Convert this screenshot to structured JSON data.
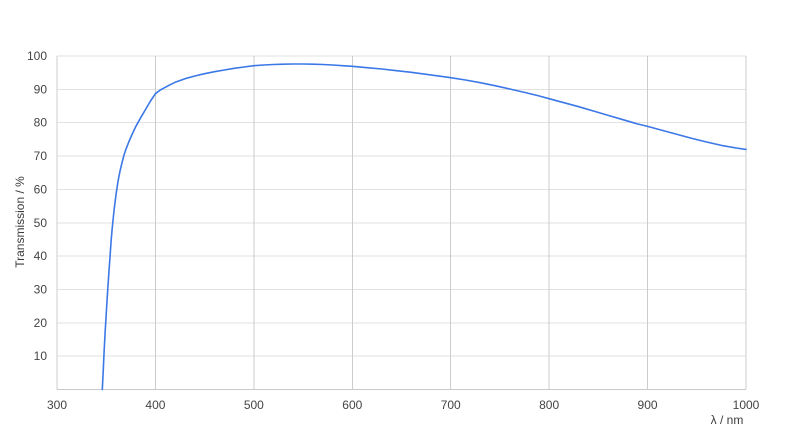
{
  "chart_data": {
    "type": "line",
    "title": "",
    "xlabel": "λ / nm",
    "ylabel": "Transmission / %",
    "xlim": [
      300,
      1000
    ],
    "ylim": [
      0,
      100
    ],
    "x_ticks": [
      300,
      400,
      500,
      600,
      700,
      800,
      900,
      1000
    ],
    "y_ticks": [
      10,
      20,
      30,
      40,
      50,
      60,
      70,
      80,
      90,
      100
    ],
    "grid": true,
    "legend_position": "none",
    "series": [
      {
        "color": "#3b78e7",
        "points": [
          [
            346,
            0
          ],
          [
            347,
            6
          ],
          [
            348,
            12
          ],
          [
            349,
            17.5
          ],
          [
            350,
            22.5
          ],
          [
            351,
            27.5
          ],
          [
            352,
            32
          ],
          [
            353,
            36.5
          ],
          [
            354,
            40.5
          ],
          [
            355,
            44.5
          ],
          [
            356,
            48
          ],
          [
            357,
            51
          ],
          [
            358,
            53.8
          ],
          [
            359,
            56.3
          ],
          [
            360,
            58.6
          ],
          [
            362,
            62.4
          ],
          [
            364,
            65.5
          ],
          [
            366,
            68
          ],
          [
            368,
            70.2
          ],
          [
            370,
            72
          ],
          [
            373,
            74.3
          ],
          [
            376,
            76.3
          ],
          [
            380,
            78.8
          ],
          [
            385,
            81.5
          ],
          [
            390,
            84
          ],
          [
            395,
            86.5
          ],
          [
            400,
            88.7
          ],
          [
            405,
            89.8
          ],
          [
            410,
            90.6
          ],
          [
            415,
            91.4
          ],
          [
            420,
            92.1
          ],
          [
            430,
            93.2
          ],
          [
            440,
            94
          ],
          [
            450,
            94.7
          ],
          [
            460,
            95.3
          ],
          [
            470,
            95.8
          ],
          [
            480,
            96.3
          ],
          [
            490,
            96.7
          ],
          [
            500,
            97.1
          ],
          [
            510,
            97.3
          ],
          [
            520,
            97.45
          ],
          [
            530,
            97.55
          ],
          [
            540,
            97.6
          ],
          [
            550,
            97.6
          ],
          [
            560,
            97.55
          ],
          [
            570,
            97.45
          ],
          [
            580,
            97.3
          ],
          [
            590,
            97.1
          ],
          [
            600,
            96.9
          ],
          [
            615,
            96.5
          ],
          [
            630,
            96.1
          ],
          [
            645,
            95.6
          ],
          [
            660,
            95.1
          ],
          [
            675,
            94.5
          ],
          [
            690,
            93.9
          ],
          [
            700,
            93.5
          ],
          [
            715,
            92.8
          ],
          [
            730,
            92
          ],
          [
            745,
            91.1
          ],
          [
            760,
            90.1
          ],
          [
            775,
            89.1
          ],
          [
            790,
            88
          ],
          [
            800,
            87.2
          ],
          [
            815,
            86
          ],
          [
            830,
            84.8
          ],
          [
            845,
            83.5
          ],
          [
            860,
            82.2
          ],
          [
            875,
            80.9
          ],
          [
            890,
            79.6
          ],
          [
            900,
            78.9
          ],
          [
            915,
            77.7
          ],
          [
            930,
            76.5
          ],
          [
            945,
            75.3
          ],
          [
            960,
            74.2
          ],
          [
            975,
            73.2
          ],
          [
            990,
            72.4
          ],
          [
            1000,
            72
          ]
        ]
      }
    ]
  },
  "colors": {
    "line": "#3b78e7",
    "grid_vertical": "#cccccc",
    "grid_horizontal": "#e2e2e2",
    "axis_line": "#c9c9c9",
    "text": "#444444",
    "background": "#ffffff"
  }
}
